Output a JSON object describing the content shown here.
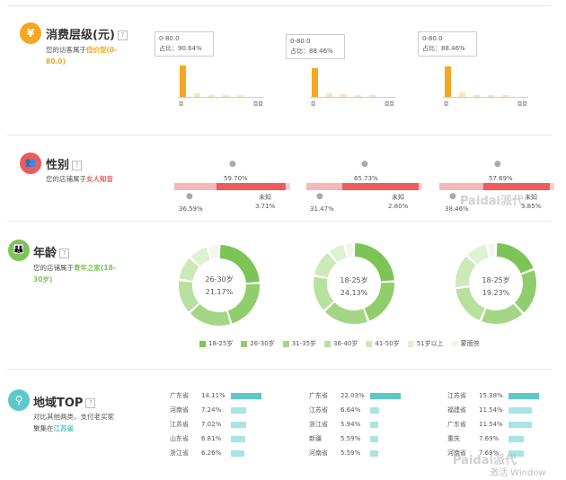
{
  "spending": {
    "title": "消费层级(元)",
    "help": "?",
    "desc_prefix": "您的访客属于",
    "desc_highlight": "低价型(0-80.0)",
    "columns": [
      {
        "range": "0-80.0",
        "share_label": "占比：90.64%"
      },
      {
        "range": "0-80.0",
        "share_label": "占比：88.46%"
      },
      {
        "range": "0-80.0",
        "share_label": "占比：88.46%"
      }
    ],
    "coin_icon": "coin-stack-icon"
  },
  "gender": {
    "title": "性别",
    "help": "?",
    "desc_prefix": "您的店铺属于",
    "desc_highlight": "女人知音",
    "columns": [
      {
        "female": "59.70%",
        "male": "36.59%",
        "unknown_label": "未知",
        "unknown": "3.71%"
      },
      {
        "female": "65.73%",
        "male": "31.47%",
        "unknown_label": "未知",
        "unknown": "2.80%"
      },
      {
        "female": "57.69%",
        "male": "38.46%",
        "unknown_label": "未知",
        "unknown": "3.85%"
      }
    ]
  },
  "age": {
    "title": "年龄",
    "help": "?",
    "desc_prefix": "您的店铺属于",
    "desc_highlight": "青年之家(18-30岁)",
    "donuts": [
      {
        "label": "26-30岁",
        "value": "21.17%",
        "segments": [
          24,
          21.17,
          18,
          14,
          10,
          8,
          4.83
        ]
      },
      {
        "label": "18-25岁",
        "value": "24.13%",
        "segments": [
          24.13,
          20,
          19,
          15,
          11,
          7,
          3.87
        ]
      },
      {
        "label": "18-25岁",
        "value": "19.23%",
        "segments": [
          19.23,
          19,
          18,
          17,
          14,
          9,
          3.77
        ]
      }
    ],
    "legend": [
      "18-25岁",
      "26-30岁",
      "31-35岁",
      "36-40岁",
      "41-50岁",
      "51岁以上",
      "蒙面侠"
    ],
    "colors": [
      "#7cc456",
      "#8fcd6d",
      "#a4d686",
      "#b8e09e",
      "#cde8b9",
      "#e0f1d3",
      "#f1f7ec"
    ]
  },
  "region": {
    "title": "地域TOP",
    "help": "?",
    "desc_line1": "对比其他两类，支付老买家",
    "desc_prefix": "聚集在",
    "desc_highlight": "江苏省",
    "columns": [
      [
        {
          "name": "广东省",
          "pct": "14.11%",
          "value": 14.11
        },
        {
          "name": "河南省",
          "pct": "7.24%",
          "value": 7.24
        },
        {
          "name": "江苏省",
          "pct": "7.02%",
          "value": 7.02
        },
        {
          "name": "山东省",
          "pct": "6.81%",
          "value": 6.81
        },
        {
          "name": "浙江省",
          "pct": "6.26%",
          "value": 6.26
        }
      ],
      [
        {
          "name": "广东省",
          "pct": "22.03%",
          "value": 22.03
        },
        {
          "name": "江苏省",
          "pct": "6.64%",
          "value": 6.64
        },
        {
          "name": "浙江省",
          "pct": "5.94%",
          "value": 5.94
        },
        {
          "name": "新疆",
          "pct": "5.59%",
          "value": 5.59
        },
        {
          "name": "河南省",
          "pct": "5.59%",
          "value": 5.59
        }
      ],
      [
        {
          "name": "江苏省",
          "pct": "15.38%",
          "value": 15.38
        },
        {
          "name": "福建省",
          "pct": "11.54%",
          "value": 11.54
        },
        {
          "name": "广东省",
          "pct": "11.54%",
          "value": 11.54
        },
        {
          "name": "重庆",
          "pct": "7.69%",
          "value": 7.69
        },
        {
          "name": "河南省",
          "pct": "7.69%",
          "value": 7.69
        }
      ]
    ]
  },
  "watermark": {
    "brand": "Paidai",
    "brand_cn": "派代",
    "os": "激活 Window"
  }
}
